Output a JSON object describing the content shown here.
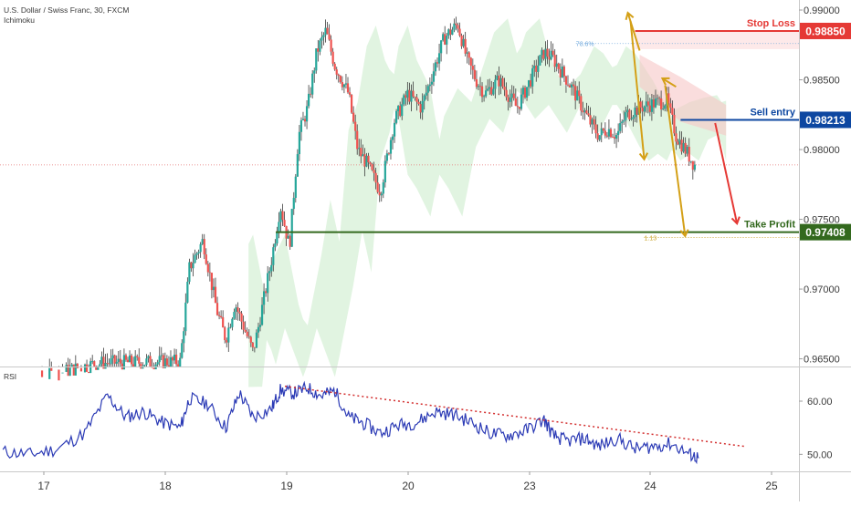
{
  "header": {
    "symbol": "U.S. Dollar / Swiss Franc, 30, FXCM",
    "indicator": "Ichimoku"
  },
  "rsi_label": "RSI",
  "annotations": {
    "stop_loss": {
      "label": "Stop Loss",
      "value": "0.98850",
      "color": "#e53935"
    },
    "sell_entry": {
      "label": "Sell entry",
      "value": "0.98213",
      "color": "#0d47a1"
    },
    "take_profit": {
      "label": "Take Profit",
      "value": "0.97408",
      "color": "#33691e"
    },
    "fib_upper": "78.6%",
    "fib_lower": "1.13"
  },
  "colors": {
    "bull": "#26a69a",
    "bear": "#ef5350",
    "rsi": "#2b3ab5",
    "cloud": "#c8ebc9",
    "arrow_gold": "#d4a017",
    "arrow_red": "#e53935"
  },
  "chart_data": [
    {
      "type": "candlestick",
      "title": "U.S. Dollar / Swiss Franc, 30, FXCM",
      "overlay": "Ichimoku",
      "ylim": [
        0.96445,
        0.99072
      ],
      "y_ticks": [
        "0.96500",
        "0.97000",
        "0.97500",
        "0.98000",
        "0.98500",
        "0.99000"
      ],
      "x_ticks": [
        "17",
        "18",
        "19",
        "20",
        "23",
        "24",
        "25"
      ],
      "current_price": 0.9789,
      "levels": [
        {
          "name": "Stop Loss",
          "value": 0.9885
        },
        {
          "name": "Sell entry",
          "value": 0.98213
        },
        {
          "name": "Take Profit",
          "value": 0.97408
        }
      ],
      "price_path": [
        [
          16.55,
          0.963
        ],
        [
          17.6,
          0.9647
        ],
        [
          18.5,
          0.9648
        ],
        [
          18.6,
          0.9715
        ],
        [
          18.75,
          0.9735
        ],
        [
          18.9,
          0.9685
        ],
        [
          19.0,
          0.9664
        ],
        [
          19.1,
          0.969
        ],
        [
          19.3,
          0.9655
        ],
        [
          19.35,
          0.967
        ],
        [
          19.5,
          0.972
        ],
        [
          19.6,
          0.976
        ],
        [
          19.7,
          0.973
        ],
        [
          19.8,
          0.981
        ],
        [
          19.9,
          0.983
        ],
        [
          20.0,
          0.987
        ],
        [
          20.1,
          0.9885
        ],
        [
          20.2,
          0.986
        ],
        [
          20.35,
          0.984
        ],
        [
          20.45,
          0.98
        ],
        [
          20.55,
          0.979
        ],
        [
          20.7,
          0.977
        ],
        [
          20.85,
          0.982
        ],
        [
          21.0,
          0.984
        ],
        [
          21.15,
          0.983
        ],
        [
          21.3,
          0.986
        ],
        [
          21.4,
          0.988
        ],
        [
          21.55,
          0.989
        ],
        [
          21.65,
          0.9865
        ],
        [
          21.75,
          0.985
        ],
        [
          21.85,
          0.984
        ],
        [
          22.0,
          0.985
        ],
        [
          22.2,
          0.983
        ],
        [
          22.35,
          0.985
        ],
        [
          22.5,
          0.987
        ],
        [
          22.6,
          0.9865
        ],
        [
          22.7,
          0.9855
        ],
        [
          22.8,
          0.9845
        ],
        [
          23.0,
          0.982
        ],
        [
          23.1,
          0.981
        ],
        [
          23.2,
          0.9815
        ],
        [
          23.3,
          0.981
        ],
        [
          23.4,
          0.9825
        ],
        [
          23.55,
          0.983
        ],
        [
          23.7,
          0.9833
        ],
        [
          23.85,
          0.9835
        ],
        [
          23.95,
          0.981
        ],
        [
          24.05,
          0.98
        ],
        [
          24.15,
          0.9789
        ]
      ]
    },
    {
      "type": "line",
      "title": "RSI",
      "ylim": [
        46.8,
        66.0
      ],
      "y_ticks": [
        "50.00",
        "60.00"
      ],
      "series": [
        {
          "values": [
            [
              16.55,
              50.5
            ],
            [
              16.85,
              50.0
            ],
            [
              17.15,
              51.0
            ],
            [
              17.45,
              54.0
            ],
            [
              17.7,
              61.0
            ],
            [
              17.9,
              57.0
            ],
            [
              18.1,
              58.0
            ],
            [
              18.3,
              56.0
            ],
            [
              18.5,
              55.0
            ],
            [
              18.6,
              60.5
            ],
            [
              18.8,
              59.5
            ],
            [
              19.0,
              55.0
            ],
            [
              19.15,
              61.5
            ],
            [
              19.3,
              57.0
            ],
            [
              19.5,
              58.5
            ],
            [
              19.6,
              62.0
            ],
            [
              19.75,
              61.5
            ],
            [
              19.9,
              62.5
            ],
            [
              20.05,
              61.0
            ],
            [
              20.2,
              62.0
            ],
            [
              20.35,
              57.0
            ],
            [
              20.5,
              56.0
            ],
            [
              20.7,
              54.0
            ],
            [
              20.9,
              55.5
            ],
            [
              21.1,
              56.0
            ],
            [
              21.3,
              58.0
            ],
            [
              21.5,
              57.5
            ],
            [
              21.7,
              56.0
            ],
            [
              21.9,
              54.0
            ],
            [
              22.1,
              53.5
            ],
            [
              22.3,
              54.5
            ],
            [
              22.5,
              56.5
            ],
            [
              22.6,
              53.5
            ],
            [
              22.75,
              52.5
            ],
            [
              22.95,
              53.0
            ],
            [
              23.1,
              51.5
            ],
            [
              23.3,
              53.0
            ],
            [
              23.5,
              51.0
            ],
            [
              23.7,
              51.5
            ],
            [
              23.9,
              52.0
            ],
            [
              24.1,
              50.0
            ],
            [
              24.2,
              49.3
            ]
          ]
        }
      ]
    }
  ]
}
